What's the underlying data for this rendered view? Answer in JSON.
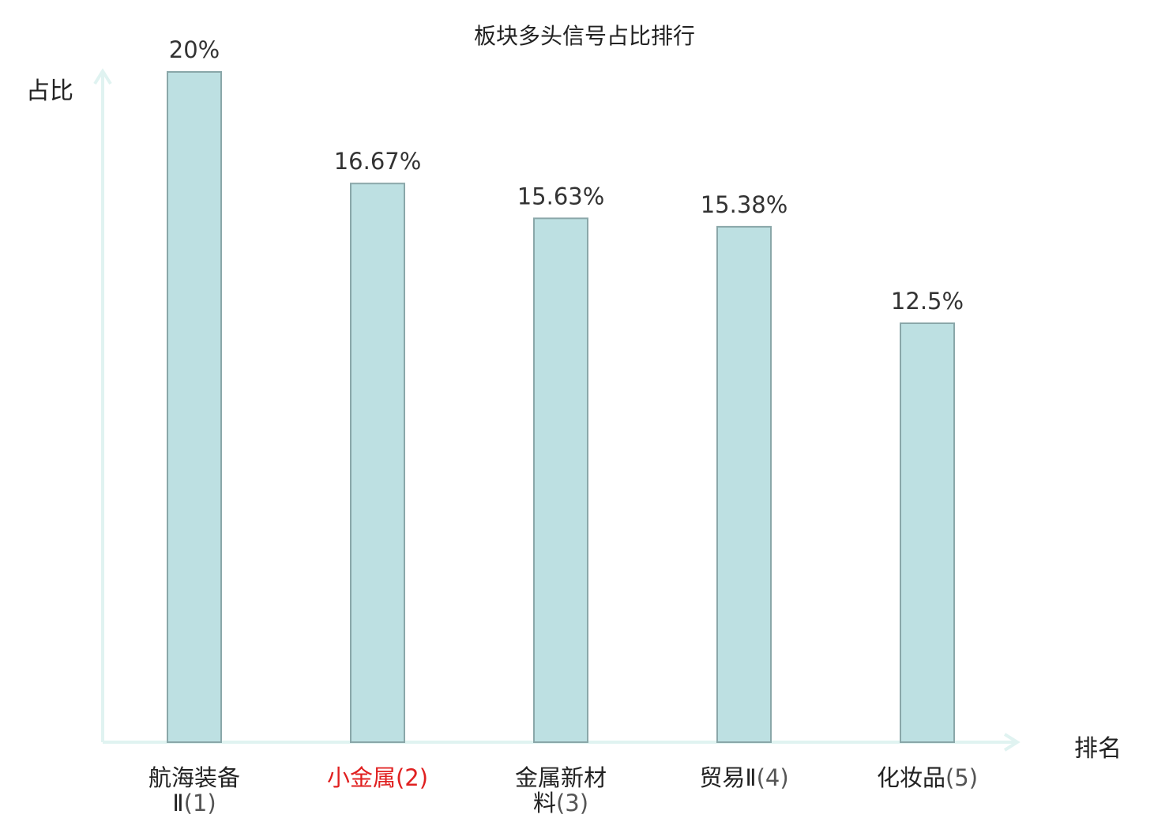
{
  "chart_data": {
    "type": "bar",
    "title": "板块多头信号占比排行",
    "xlabel": "排名",
    "ylabel": "占比",
    "categories": [
      {
        "name": "航海装备Ⅱ",
        "rank": "(1)"
      },
      {
        "name": "小金属",
        "rank": "(2)",
        "highlight": true
      },
      {
        "name": "金属新材料",
        "rank": "(3)"
      },
      {
        "name": "贸易Ⅱ",
        "rank": "(4)"
      },
      {
        "name": "化妆品",
        "rank": "(5)"
      }
    ],
    "values": [
      20,
      16.67,
      15.63,
      15.38,
      12.5
    ],
    "value_labels": [
      "20%",
      "16.67%",
      "15.63%",
      "15.38%",
      "12.5%"
    ],
    "ylim": [
      0,
      20
    ],
    "grid": false,
    "legend": "none"
  },
  "colors": {
    "bar_fill": "#bde0e2",
    "bar_stroke": "#8aa7a9",
    "axis": "#e0f3f1",
    "text": "#222222",
    "value_text": "#333333",
    "rank_text": "#555555",
    "highlight": "#e02020"
  }
}
